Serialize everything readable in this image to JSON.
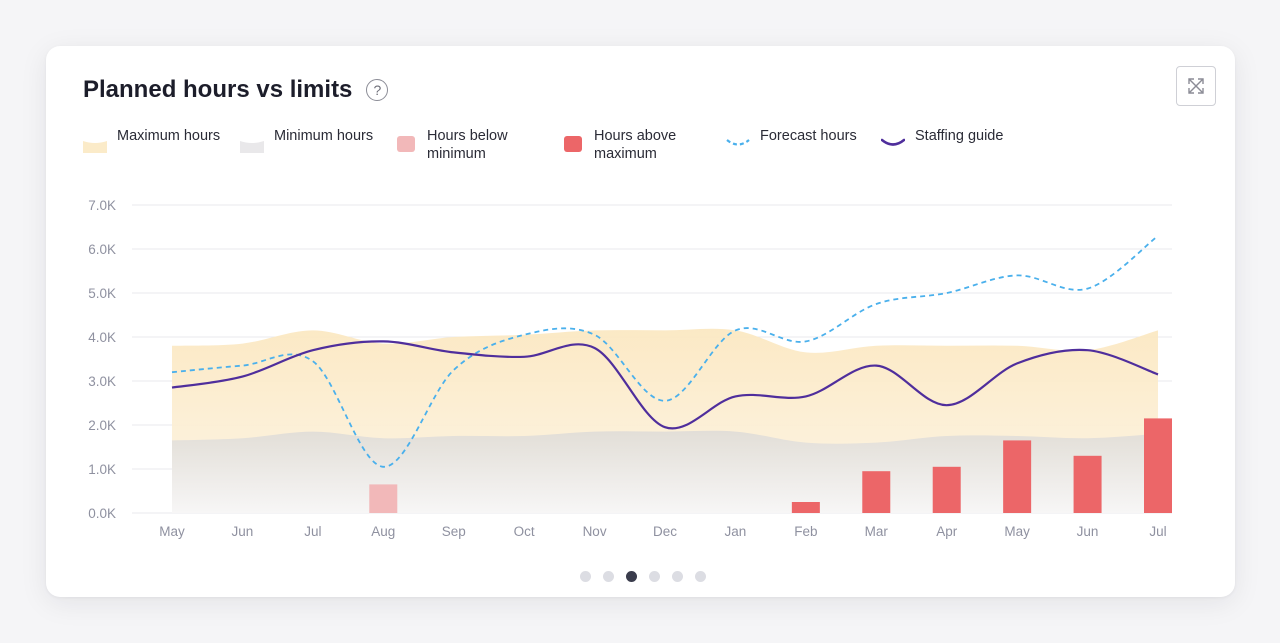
{
  "card": {
    "title": "Planned hours vs limits",
    "help_icon": "question-circle-icon",
    "expand_icon": "expand-icon"
  },
  "legend": [
    {
      "label": "Maximum hours",
      "swatch": "band",
      "color": "#fbebc9"
    },
    {
      "label": "Minimum hours",
      "swatch": "band",
      "color": "#e9e8ea"
    },
    {
      "label": "Hours below minimum",
      "swatch": "box",
      "color": "#f2b8b9"
    },
    {
      "label": "Hours above maximum",
      "swatch": "box",
      "color": "#ec6668"
    },
    {
      "label": "Forecast hours",
      "swatch": "dash",
      "color": "#4ab0ec"
    },
    {
      "label": "Staffing guide",
      "swatch": "line",
      "color": "#4f2e9c"
    }
  ],
  "pager": {
    "count": 6,
    "active": 2
  },
  "chart_data": {
    "type": "line",
    "categories": [
      "May",
      "Jun",
      "Jul",
      "Aug",
      "Sep",
      "Oct",
      "Nov",
      "Dec",
      "Jan",
      "Feb",
      "Mar",
      "Apr",
      "May",
      "Jun",
      "Jul"
    ],
    "y_ticks": [
      "0.0K",
      "1.0K",
      "2.0K",
      "3.0K",
      "4.0K",
      "5.0K",
      "6.0K",
      "7.0K"
    ],
    "ylim": [
      0,
      7000
    ],
    "grid": true,
    "legend_position": "top",
    "series": [
      {
        "name": "Maximum hours",
        "kind": "area",
        "color": "#fbebc9",
        "values": [
          3800,
          3850,
          4150,
          3850,
          4000,
          4050,
          4150,
          4150,
          4150,
          3650,
          3800,
          3800,
          3800,
          3700,
          4150
        ]
      },
      {
        "name": "Minimum hours",
        "kind": "area",
        "color": "#e6e4e3",
        "values": [
          1650,
          1700,
          1850,
          1700,
          1750,
          1750,
          1850,
          1850,
          1850,
          1600,
          1600,
          1750,
          1750,
          1700,
          1800
        ]
      },
      {
        "name": "Forecast hours",
        "kind": "dashed-line",
        "color": "#4ab0ec",
        "values": [
          3200,
          3350,
          3450,
          1050,
          3250,
          4050,
          4050,
          2550,
          4150,
          3900,
          4750,
          5000,
          5400,
          5100,
          6300
        ]
      },
      {
        "name": "Staffing guide",
        "kind": "line",
        "color": "#4f2e9c",
        "values": [
          2850,
          3100,
          3700,
          3900,
          3650,
          3550,
          3750,
          1950,
          2650,
          2650,
          3350,
          2450,
          3400,
          3700,
          3150
        ]
      },
      {
        "name": "Hours below minimum",
        "kind": "bar",
        "color": "#f2b8b9",
        "values": [
          0,
          0,
          0,
          650,
          0,
          0,
          0,
          0,
          0,
          0,
          0,
          0,
          0,
          0,
          0
        ]
      },
      {
        "name": "Hours above maximum",
        "kind": "bar",
        "color": "#ec6668",
        "values": [
          0,
          0,
          0,
          0,
          0,
          0,
          0,
          0,
          0,
          250,
          950,
          1050,
          1650,
          1300,
          2150
        ]
      }
    ]
  }
}
